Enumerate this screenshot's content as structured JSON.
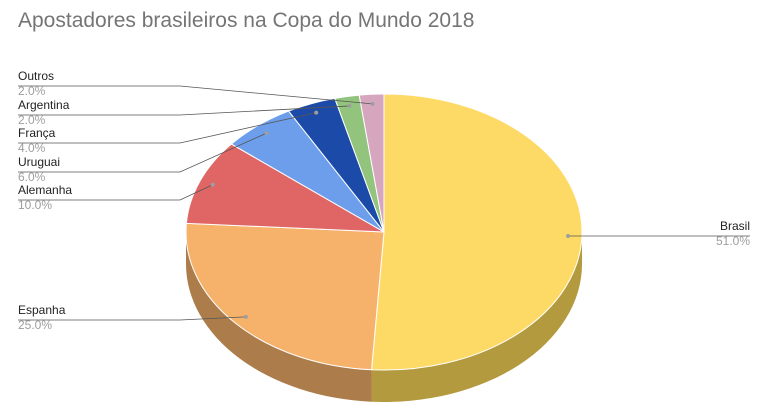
{
  "chart_data": {
    "type": "pie",
    "title": "Apostadores brasileiros na Copa do Mundo 2018",
    "three_d": true,
    "legend": "labels",
    "slices": [
      {
        "label": "Brasil",
        "value": 51.0,
        "value_label": "51.0%",
        "color": "#fdd966",
        "side_color": "#b49a3e"
      },
      {
        "label": "Espanha",
        "value": 25.0,
        "value_label": "25.0%",
        "color": "#f6b26b",
        "side_color": "#ac7c4b"
      },
      {
        "label": "Alemanha",
        "value": 10.0,
        "value_label": "10.0%",
        "color": "#e06666",
        "side_color": "#9d4747"
      },
      {
        "label": "Uruguai",
        "value": 6.0,
        "value_label": "6.0%",
        "color": "#6d9eeb",
        "side_color": "#4c6fa4"
      },
      {
        "label": "França",
        "value": 4.0,
        "value_label": "4.0%",
        "color": "#1c4aa8",
        "side_color": "#133375"
      },
      {
        "label": "Argentina",
        "value": 2.0,
        "value_label": "2.0%",
        "color": "#93c47d",
        "side_color": "#678957"
      },
      {
        "label": "Outros",
        "value": 2.0,
        "value_label": "2.0%",
        "color": "#d5a6bd",
        "side_color": "#957484"
      }
    ]
  }
}
